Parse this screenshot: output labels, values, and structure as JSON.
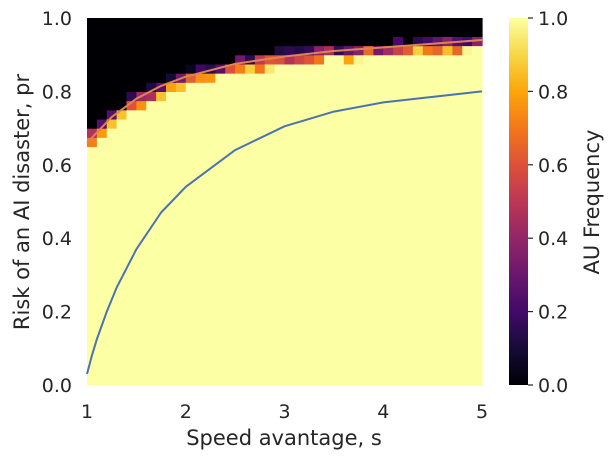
{
  "chart_data": {
    "type": "heatmap",
    "xlabel": "Speed avantage, s",
    "ylabel": "Risk of an AI disaster, pr",
    "xlim": [
      1,
      5
    ],
    "ylim": [
      0,
      1
    ],
    "x_ticks": [
      "1",
      "2",
      "3",
      "4",
      "5"
    ],
    "y_ticks": [
      "0.0",
      "0.2",
      "0.4",
      "0.6",
      "0.8",
      "1.0"
    ],
    "grid_size": [
      40,
      40
    ],
    "colorbar": {
      "label": "AU Frequency",
      "range": [
        0,
        1
      ],
      "ticks": [
        "0.0",
        "0.2",
        "0.4",
        "0.6",
        "0.8",
        "1.0"
      ],
      "colormap": "inferno"
    },
    "heat_boundary": {
      "x": [
        1.0,
        1.5,
        2.0,
        2.5,
        3.0,
        3.5,
        4.0,
        4.5,
        5.0
      ],
      "y": [
        0.665,
        0.78,
        0.835,
        0.87,
        0.89,
        0.905,
        0.915,
        0.925,
        0.935
      ]
    },
    "lines": [
      {
        "color": "#4c72b0",
        "x": [
          1.0,
          1.05,
          1.1,
          1.2,
          1.3,
          1.5,
          1.75,
          2.0,
          2.5,
          3.0,
          3.5,
          4.0,
          4.5,
          5.0
        ],
        "y": [
          0.03,
          0.08,
          0.125,
          0.2,
          0.265,
          0.37,
          0.47,
          0.54,
          0.64,
          0.705,
          0.745,
          0.77,
          0.785,
          0.8
        ]
      },
      {
        "color": "#dd8452",
        "x": [
          1.0,
          1.25,
          1.5,
          1.75,
          2.0,
          2.5,
          3.0,
          3.5,
          4.0,
          4.5,
          5.0
        ],
        "y": [
          0.66,
          0.73,
          0.78,
          0.815,
          0.84,
          0.875,
          0.895,
          0.91,
          0.92,
          0.93,
          0.94
        ]
      }
    ]
  }
}
